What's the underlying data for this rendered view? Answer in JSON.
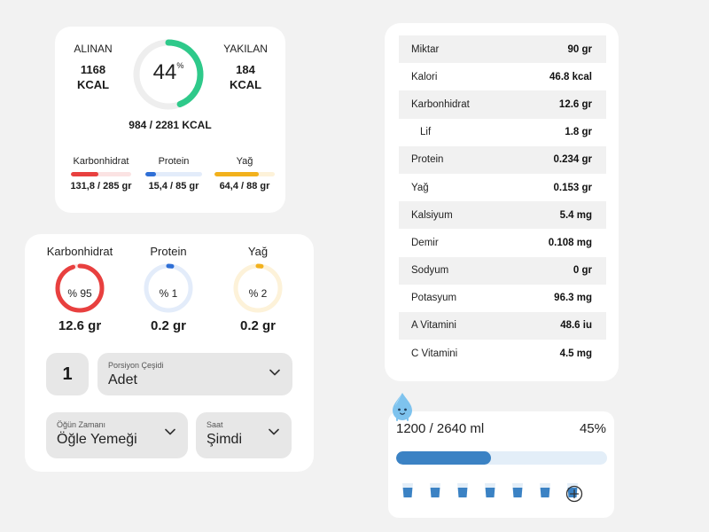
{
  "summary": {
    "intake_label": "ALINAN",
    "intake_value": "1168",
    "intake_unit": "KCAL",
    "burned_label": "YAKILAN",
    "burned_value": "184",
    "burned_unit": "KCAL",
    "ring_percent": "44",
    "ring_percent_symbol": "%",
    "ring_fraction": 0.44,
    "total": "984 / 2281 KCAL",
    "macros": [
      {
        "label": "Karbonhidrat",
        "value": "131,8 / 285 gr",
        "fraction": 0.46,
        "color": "#e8403f",
        "track": "#fbe3e3"
      },
      {
        "label": "Protein",
        "value": "15,4 / 85 gr",
        "fraction": 0.18,
        "color": "#2f6fd6",
        "track": "#e3ecfa"
      },
      {
        "label": "Yağ",
        "value": "64,4 / 88 gr",
        "fraction": 0.73,
        "color": "#f2b11c",
        "track": "#fdf2d9"
      }
    ]
  },
  "portion": {
    "circles": [
      {
        "title": "Karbonhidrat",
        "percent": "% 95",
        "fraction": 0.95,
        "value": "12.6 gr",
        "color": "#e8403f",
        "track": "#fbe3e3"
      },
      {
        "title": "Protein",
        "percent": "% 1",
        "fraction": 0.01,
        "value": "0.2 gr",
        "color": "#2f6fd6",
        "track": "#e3ecfa"
      },
      {
        "title": "Yağ",
        "percent": "% 2",
        "fraction": 0.02,
        "value": "0.2 gr",
        "color": "#f2b11c",
        "track": "#fdf2d9"
      }
    ],
    "quantity": "1",
    "portion_type_label": "Porsiyon Çeşidi",
    "portion_type_value": "Adet",
    "meal_time_label": "Öğün Zamanı",
    "meal_time_value": "Öğle Yemeği",
    "time_label": "Saat",
    "time_value": "Şimdi"
  },
  "nutrition": [
    {
      "name": "Miktar",
      "value": "90 gr"
    },
    {
      "name": "Kalori",
      "value": "46.8 kcal"
    },
    {
      "name": "Karbonhidrat",
      "value": "12.6 gr"
    },
    {
      "name": "Lif",
      "value": "1.8 gr",
      "indent": true
    },
    {
      "name": "Protein",
      "value": "0.234 gr"
    },
    {
      "name": "Yağ",
      "value": "0.153 gr"
    },
    {
      "name": "Kalsiyum",
      "value": "5.4 mg"
    },
    {
      "name": "Demir",
      "value": "0.108 mg"
    },
    {
      "name": "Sodyum",
      "value": "0 gr"
    },
    {
      "name": "Potasyum",
      "value": "96.3 mg"
    },
    {
      "name": "A Vitamini",
      "value": "48.6 iu"
    },
    {
      "name": "C Vitamini",
      "value": "4.5 mg"
    }
  ],
  "water": {
    "amount": "1200 / 2640 ml",
    "percent": "45%",
    "fraction": 0.45,
    "glasses": 7,
    "icons": [
      "water-drop-mascot-icon",
      "water-glass-icon",
      "add-circle-icon"
    ],
    "colors": {
      "fill": "#3b82c4",
      "track": "#e3eef8"
    }
  },
  "colors": {
    "cal_ring": "#2ec98a",
    "cal_track": "#eeeeee"
  }
}
